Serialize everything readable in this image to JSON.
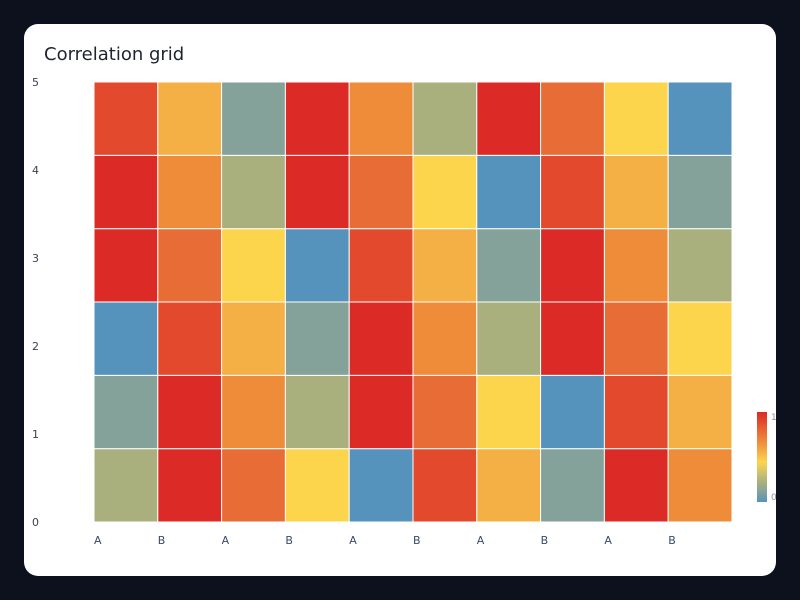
{
  "chart_data": {
    "type": "heatmap",
    "title": "Correlation grid",
    "xlabel": "",
    "ylabel": "",
    "x_tick_labels": [
      "A",
      "B",
      "A",
      "B",
      "A",
      "B",
      "A",
      "B",
      "A",
      "B"
    ],
    "y_tick_labels": [
      "0",
      "1",
      "2",
      "3",
      "4",
      "5"
    ],
    "ylim": [
      0,
      5
    ],
    "value_range": [
      0,
      1
    ],
    "colorbar": {
      "min_label": "0",
      "max_label": "1",
      "placement": "right"
    },
    "color_scale": [
      "#5592bc",
      "#84a29a",
      "#a9b07e",
      "#d4c46a",
      "#fcd54d",
      "#f4b044",
      "#ef8c3a",
      "#e86c35",
      "#e2492d",
      "#dc2a26"
    ],
    "grid": true,
    "rows": [
      [
        0.25,
        1.0,
        0.75,
        0.4,
        0.0,
        0.85,
        0.5,
        0.1,
        0.95,
        0.65
      ],
      [
        0.1,
        0.95,
        0.65,
        0.25,
        1.0,
        0.75,
        0.4,
        0.0,
        0.85,
        0.5
      ],
      [
        0.0,
        0.85,
        0.5,
        0.1,
        0.95,
        0.65,
        0.25,
        1.0,
        0.75,
        0.4
      ],
      [
        1.0,
        0.75,
        0.4,
        0.0,
        0.85,
        0.5,
        0.1,
        0.95,
        0.65,
        0.25
      ],
      [
        0.95,
        0.65,
        0.25,
        1.0,
        0.75,
        0.4,
        0.0,
        0.85,
        0.5,
        0.1
      ],
      [
        0.85,
        0.5,
        0.1,
        0.95,
        0.65,
        0.25,
        1.0,
        0.75,
        0.4,
        0.0
      ]
    ]
  }
}
